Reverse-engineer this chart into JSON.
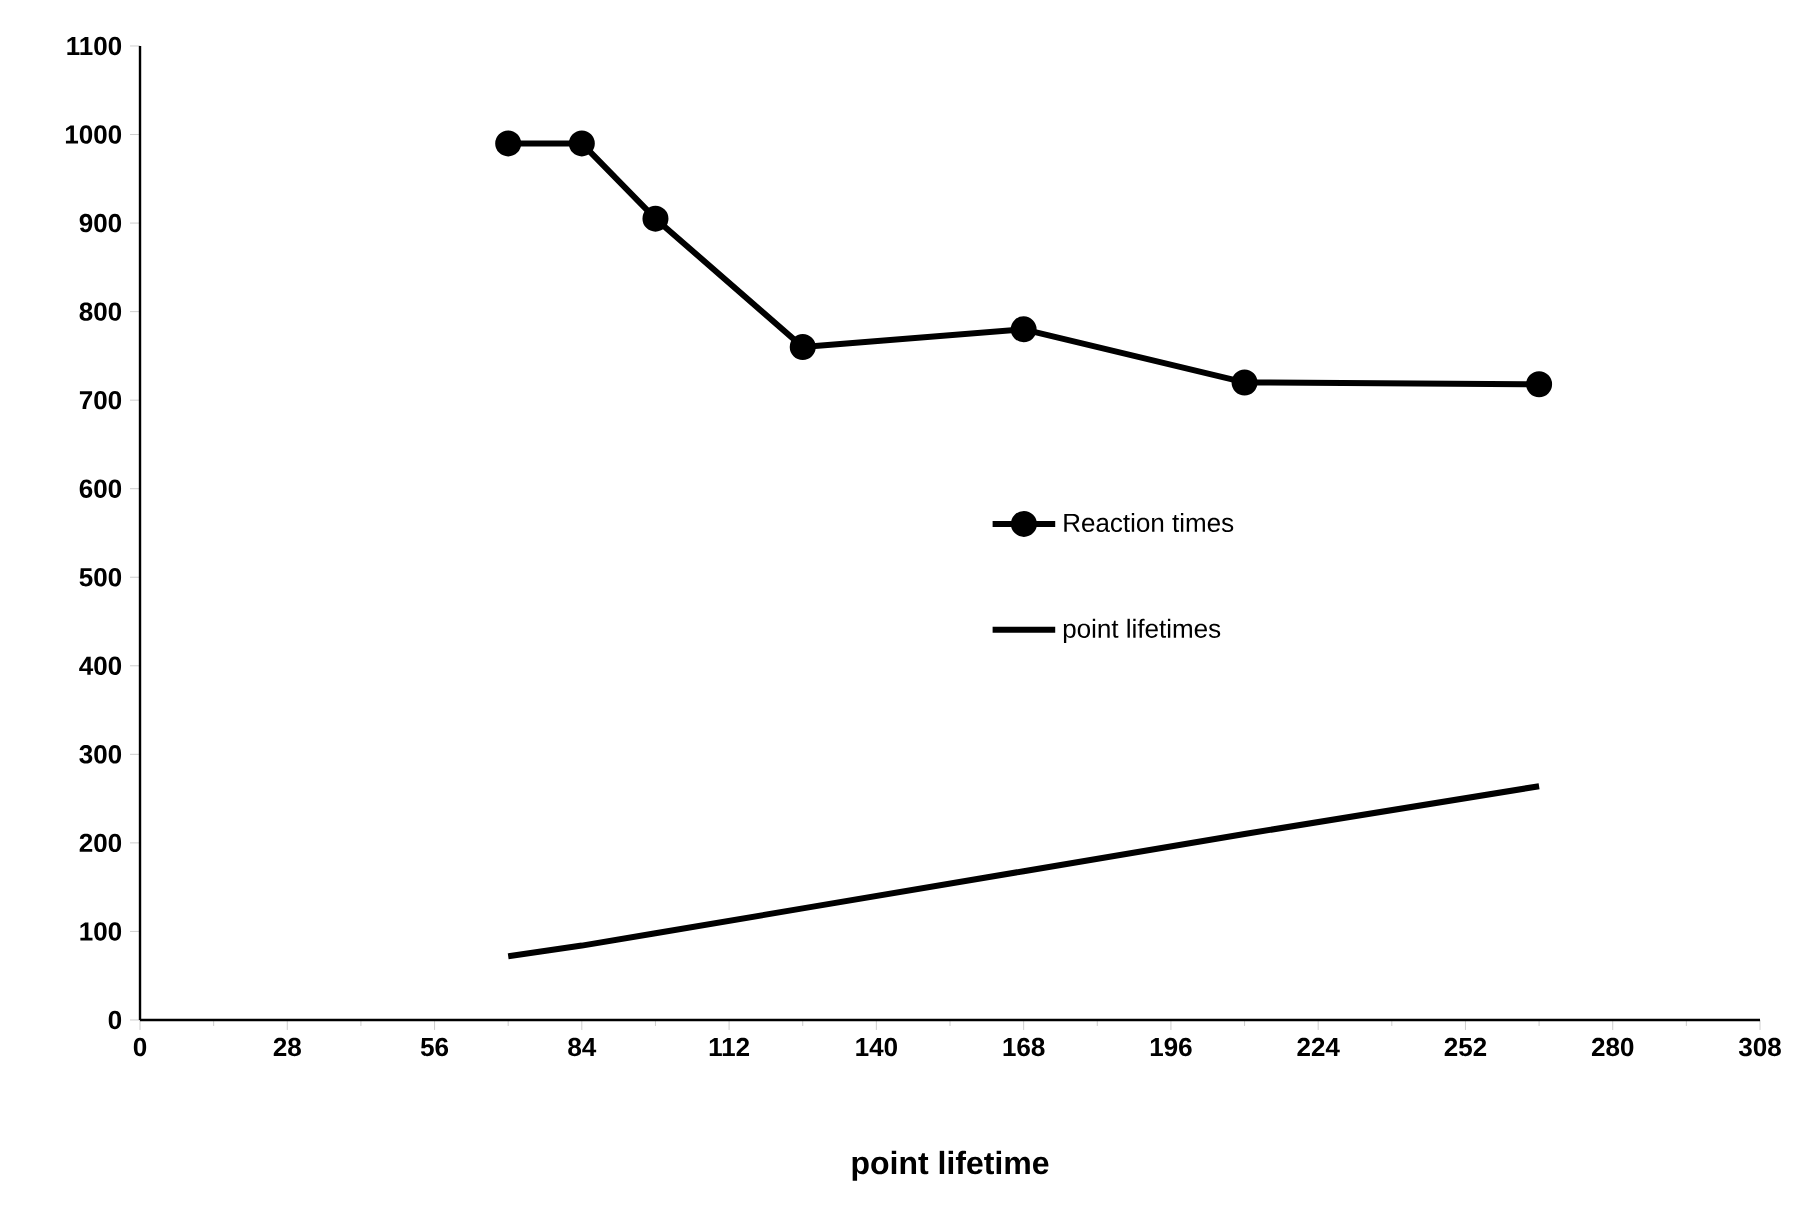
{
  "chart_data": {
    "type": "line",
    "xlabel": "point lifetime",
    "xlim": [
      0,
      308
    ],
    "xticks": [
      0,
      28,
      56,
      84,
      112,
      140,
      168,
      196,
      224,
      252,
      280,
      308
    ],
    "ylim": [
      0,
      1100
    ],
    "yticks": [
      0,
      100,
      200,
      300,
      400,
      500,
      600,
      700,
      800,
      900,
      1000,
      1100
    ],
    "grid": false,
    "legend": "right",
    "series": [
      {
        "name": "Reaction times",
        "color": "#000000",
        "marker": "circle",
        "x": [
          70,
          84,
          98,
          126,
          168,
          210,
          266
        ],
        "values": [
          990,
          990,
          905,
          760,
          780,
          720,
          718
        ]
      },
      {
        "name": "point lifetimes",
        "color": "#000000",
        "marker": "none",
        "x": [
          70,
          84,
          98,
          126,
          168,
          210,
          266
        ],
        "values": [
          72,
          84,
          98,
          126,
          168,
          210,
          264
        ]
      }
    ]
  }
}
